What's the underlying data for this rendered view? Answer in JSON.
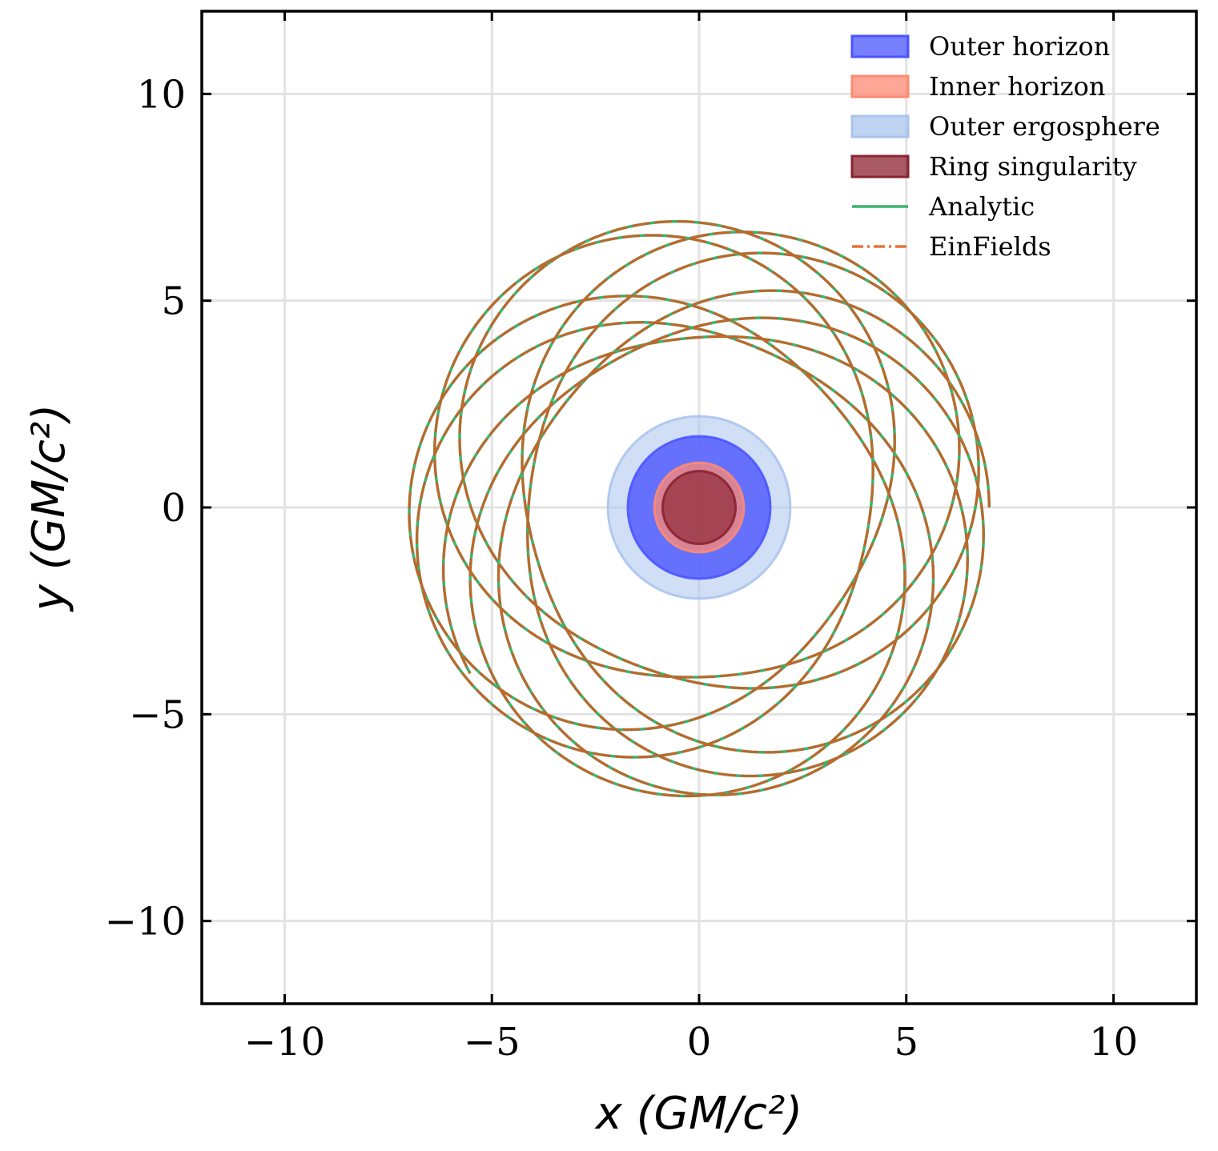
{
  "chart_data": {
    "type": "line",
    "title": "",
    "xlabel": "x (GM/c²)",
    "ylabel": "y (GM/c²)",
    "xlim": [
      -12,
      12
    ],
    "ylim": [
      -12,
      12
    ],
    "xticks": [
      -10,
      -5,
      0,
      5,
      10
    ],
    "yticks": [
      -10,
      -5,
      0,
      5,
      10
    ],
    "xtick_labels": [
      "−10",
      "−5",
      "0",
      "5",
      "10"
    ],
    "ytick_labels": [
      "−10",
      "−5",
      "0",
      "5",
      "10"
    ],
    "grid": true,
    "legend_position": "top-right",
    "regions": [
      {
        "name": "Outer ergosphere",
        "radius": 2.2,
        "color": "#aac4ee",
        "opacity": 0.55
      },
      {
        "name": "Outer horizon",
        "radius": 1.72,
        "color": "#4a55ff",
        "opacity": 0.8
      },
      {
        "name": "Inner horizon",
        "radius": 1.08,
        "color": "#ff8a73",
        "opacity": 0.75
      },
      {
        "name": "Ring singularity",
        "radius": 0.88,
        "color": "#8b2230",
        "opacity": 0.65
      }
    ],
    "orbit": {
      "start": [
        7.0,
        0.0
      ],
      "end": [
        1.4,
        4.0
      ],
      "r_min": 4.1,
      "r_max": 7.0,
      "revolutions": 8.6,
      "precession_ratio": 1.27,
      "rotation_sign": 1
    },
    "series": [
      {
        "name": "Analytic",
        "color": "#3cb371",
        "style": "solid"
      },
      {
        "name": "EinFields",
        "color": "#e8733a",
        "style": "dashdot"
      }
    ],
    "legend": [
      {
        "label": "Outer horizon",
        "kind": "patch",
        "color": "#4a55ff"
      },
      {
        "label": "Inner horizon",
        "kind": "patch",
        "color": "#ff8a73"
      },
      {
        "label": "Outer ergosphere",
        "kind": "patch",
        "color": "#aac4ee"
      },
      {
        "label": "Ring singularity",
        "kind": "patch",
        "color": "#8b2230"
      },
      {
        "label": "Analytic",
        "kind": "line",
        "color": "#3cb371"
      },
      {
        "label": "EinFields",
        "kind": "line",
        "color": "#e8733a"
      }
    ]
  }
}
